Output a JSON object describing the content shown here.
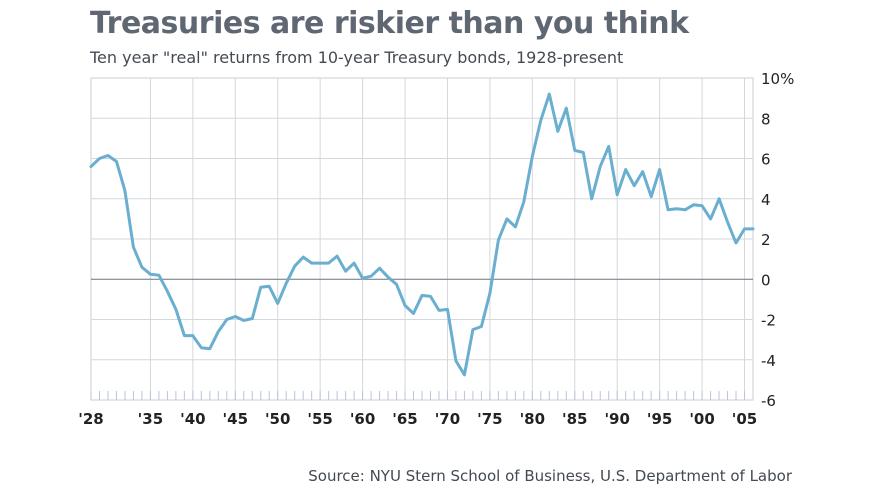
{
  "title": "Treasuries are riskier than you think",
  "subtitle": "Ten year \"real\" returns from 10-year Treasury bonds, 1928-present",
  "source": "Source: NYU Stern School of Business, U.S. Department of Labor",
  "chart_data": {
    "type": "line",
    "title": "Treasuries are riskier than you think",
    "subtitle": "Ten year \"real\" returns from 10-year Treasury bonds, 1928-present",
    "xlabel": "",
    "ylabel": "",
    "xlim": [
      1928,
      2006
    ],
    "ylim": [
      -6,
      10
    ],
    "grid": true,
    "y_ticks": [
      -6,
      -4,
      -2,
      0,
      2,
      4,
      6,
      8,
      10
    ],
    "y_tick_labels": [
      "-6",
      "-4",
      "-2",
      "0",
      "2",
      "4",
      "6",
      "8",
      "10%"
    ],
    "x_ticks": [
      1928,
      1935,
      1940,
      1945,
      1950,
      1955,
      1960,
      1965,
      1970,
      1975,
      1980,
      1985,
      1990,
      1995,
      2000,
      2005
    ],
    "x_tick_labels": [
      "'28",
      "'35",
      "'40",
      "'45",
      "'50",
      "'55",
      "'60",
      "'65",
      "'70",
      "'75",
      "'80",
      "'85",
      "'90",
      "'95",
      "'00",
      "'05"
    ],
    "line_color": "#6aaed0",
    "x": [
      1928,
      1929,
      1930,
      1931,
      1932,
      1933,
      1934,
      1935,
      1936,
      1937,
      1938,
      1939,
      1940,
      1941,
      1942,
      1943,
      1944,
      1945,
      1946,
      1947,
      1948,
      1949,
      1950,
      1951,
      1952,
      1953,
      1954,
      1955,
      1956,
      1957,
      1958,
      1959,
      1960,
      1961,
      1962,
      1963,
      1964,
      1965,
      1966,
      1967,
      1968,
      1969,
      1970,
      1971,
      1972,
      1973,
      1974,
      1975,
      1976,
      1977,
      1978,
      1979,
      1980,
      1981,
      1982,
      1983,
      1984,
      1985,
      1986,
      1987,
      1988,
      1989,
      1990,
      1991,
      1992,
      1993,
      1994,
      1995,
      1996,
      1997,
      1998,
      1999,
      2000,
      2001,
      2002,
      2003,
      2004,
      2005,
      2006
    ],
    "values": [
      5.6,
      6.0,
      6.15,
      5.85,
      4.4,
      1.6,
      0.6,
      0.25,
      0.2,
      -0.6,
      -1.5,
      -2.8,
      -2.8,
      -3.4,
      -3.45,
      -2.6,
      -2.0,
      -1.85,
      -2.05,
      -1.95,
      -0.4,
      -0.35,
      -1.2,
      -0.2,
      0.65,
      1.1,
      0.8,
      0.8,
      0.8,
      1.15,
      0.4,
      0.8,
      0.05,
      0.15,
      0.55,
      0.1,
      -0.25,
      -1.3,
      -1.7,
      -0.8,
      -0.85,
      -1.55,
      -1.5,
      -4.05,
      -4.75,
      -2.5,
      -2.35,
      -0.7,
      1.95,
      3.0,
      2.6,
      3.85,
      6.1,
      7.9,
      9.2,
      7.35,
      8.5,
      6.4,
      6.3,
      4.0,
      5.6,
      6.6,
      4.2,
      5.45,
      4.65,
      5.35,
      4.1,
      5.45,
      3.45,
      3.5,
      3.45,
      3.7,
      3.65,
      3.0,
      4.0,
      2.85,
      1.8,
      2.5,
      2.5
    ]
  }
}
